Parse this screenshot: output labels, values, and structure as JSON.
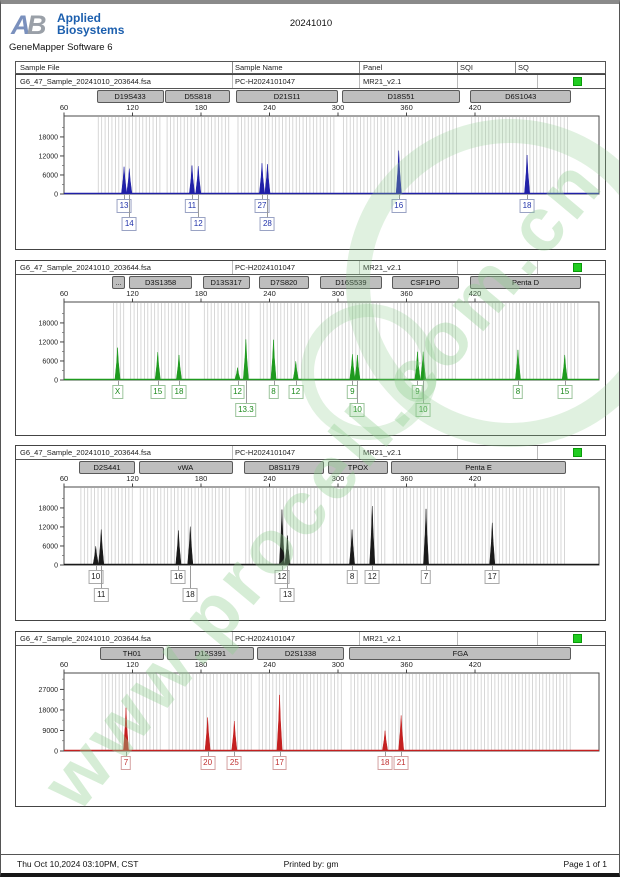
{
  "header": {
    "logo_a": "A",
    "logo_b": "B",
    "logo_line1": "Applied",
    "logo_line2": "Biosystems",
    "app_title": "GeneMapper Software 6",
    "doc_title": "20241010"
  },
  "table_header": {
    "columns": [
      "Sample File",
      "Sample Name",
      "Panel",
      "SQI",
      "SQ"
    ]
  },
  "sample_row": {
    "sample_file": "G6_47_Sample_20241010_203644.fsa",
    "sample_name": "PC-H2024101047",
    "panel": "MR21_v2.1",
    "sqi": "",
    "sq_status_color": "#21cc21"
  },
  "watermark": {
    "text": "www.procell.com.cn",
    "color": "#8fce8f"
  },
  "footer": {
    "datetime": "Thu Oct 10,2024 03:10PM, CST",
    "printed_by": "Printed by: gm",
    "page": "Page 1 of 1"
  },
  "axis": {
    "x_ticks": [
      60,
      120,
      180,
      240,
      300,
      360,
      420
    ],
    "x_label_unit": "bp"
  },
  "chart_data": [
    {
      "type": "line",
      "dye": "blue",
      "dye_color": "#2020a8",
      "label_color": "#2233aa",
      "label_border": "#9aa3c4",
      "y_ticks": [
        0,
        6000,
        12000,
        18000
      ],
      "y_max": 24600,
      "markers": [
        {
          "name": "D19S433",
          "range_bp": [
            88.5,
            147.2
          ]
        },
        {
          "name": "D5S818",
          "range_bp": [
            148.8,
            205.8
          ]
        },
        {
          "name": "D21S11",
          "range_bp": [
            210.9,
            299.8
          ]
        },
        {
          "name": "D18S51",
          "range_bp": [
            303.2,
            407.2
          ]
        },
        {
          "name": "D6S1043",
          "range_bp": [
            415.6,
            504.5
          ]
        }
      ],
      "peaks": [
        {
          "marker": "D19S433",
          "allele": "13",
          "size_bp": 112.6,
          "height_rfu": 8600,
          "label_row": 1
        },
        {
          "marker": "D19S433",
          "allele": "14",
          "size_bp": 117.2,
          "height_rfu": 8000,
          "label_row": 2
        },
        {
          "marker": "D5S818",
          "allele": "11",
          "size_bp": 172.1,
          "height_rfu": 9000,
          "label_row": 1
        },
        {
          "marker": "D5S818",
          "allele": "12",
          "size_bp": 177.6,
          "height_rfu": 8800,
          "label_row": 2
        },
        {
          "marker": "D21S11",
          "allele": "27",
          "size_bp": 233.4,
          "height_rfu": 9700,
          "label_row": 1
        },
        {
          "marker": "D21S11",
          "allele": "28",
          "size_bp": 238.2,
          "height_rfu": 9400,
          "label_row": 2
        },
        {
          "marker": "D18S51",
          "allele": "16",
          "size_bp": 353.2,
          "height_rfu": 13700,
          "label_row": 1
        },
        {
          "marker": "D6S1043",
          "allele": "18",
          "size_bp": 465.6,
          "height_rfu": 12300,
          "label_row": 1
        }
      ]
    },
    {
      "type": "line",
      "dye": "green",
      "dye_color": "#1e9a1e",
      "label_color": "#1c8a1c",
      "label_border": "#9cc49c",
      "y_ticks": [
        0,
        6000,
        12000,
        18000
      ],
      "y_max": 24600,
      "markers": [
        {
          "name": "...",
          "range_bp": [
            101.8,
            113.6
          ]
        },
        {
          "name": "D3S1358",
          "range_bp": [
            116.9,
            172.3
          ]
        },
        {
          "name": "D13S317",
          "range_bp": [
            181.4,
            222.7
          ]
        },
        {
          "name": "D7S820",
          "range_bp": [
            230.4,
            274.7
          ]
        },
        {
          "name": "D16S539",
          "range_bp": [
            284.1,
            338.5
          ]
        },
        {
          "name": "CSF1PO",
          "range_bp": [
            347.5,
            405.6
          ]
        },
        {
          "name": "Penta D",
          "range_bp": [
            415.6,
            512.9
          ]
        }
      ],
      "peaks": [
        {
          "marker": "AMEL",
          "allele": "X",
          "size_bp": 106.9,
          "height_rfu": 10200,
          "label_row": 1
        },
        {
          "marker": "D3S1358",
          "allele": "15",
          "size_bp": 142.1,
          "height_rfu": 8800,
          "label_row": 1
        },
        {
          "marker": "D3S1358",
          "allele": "18",
          "size_bp": 160.7,
          "height_rfu": 7900,
          "label_row": 1
        },
        {
          "marker": "D13S317",
          "allele": "12",
          "size_bp": 212.0,
          "height_rfu": 3900,
          "label_row": 1
        },
        {
          "marker": "D13S317",
          "allele": "13.3",
          "size_bp": 219.3,
          "height_rfu": 12800,
          "label_row": 2
        },
        {
          "marker": "D7S820",
          "allele": "8",
          "size_bp": 243.5,
          "height_rfu": 12700,
          "label_row": 1
        },
        {
          "marker": "D7S820",
          "allele": "12",
          "size_bp": 263.0,
          "height_rfu": 5900,
          "label_row": 1
        },
        {
          "marker": "D16S539",
          "allele": "9",
          "size_bp": 312.6,
          "height_rfu": 8100,
          "label_row": 1
        },
        {
          "marker": "D16S539",
          "allele": "10",
          "size_bp": 317.0,
          "height_rfu": 7900,
          "label_row": 2
        },
        {
          "marker": "CSF1PO",
          "allele": "9",
          "size_bp": 369.6,
          "height_rfu": 8900,
          "label_row": 1
        },
        {
          "marker": "CSF1PO",
          "allele": "10",
          "size_bp": 374.6,
          "height_rfu": 8900,
          "label_row": 2
        },
        {
          "marker": "Penta D",
          "allele": "8",
          "size_bp": 457.6,
          "height_rfu": 9500,
          "label_row": 1
        },
        {
          "marker": "Penta D",
          "allele": "15",
          "size_bp": 498.6,
          "height_rfu": 7900,
          "label_row": 1
        }
      ]
    },
    {
      "type": "line",
      "dye": "black",
      "dye_color": "#1a1a1a",
      "label_color": "#1a1a1a",
      "label_border": "#aaaaaa",
      "y_ticks": [
        0,
        6000,
        12000,
        18000
      ],
      "y_max": 24600,
      "markers": [
        {
          "name": "D2S441",
          "range_bp": [
            73.3,
            122.1
          ]
        },
        {
          "name": "vWA",
          "range_bp": [
            125.3,
            207.6
          ]
        },
        {
          "name": "D8S1179",
          "range_bp": [
            217.7,
            288.1
          ]
        },
        {
          "name": "TPOX",
          "range_bp": [
            291.5,
            343.5
          ]
        },
        {
          "name": "Penta E",
          "range_bp": [
            346.8,
            499.5
          ]
        }
      ],
      "peaks": [
        {
          "marker": "D2S441",
          "allele": "10",
          "size_bp": 87.8,
          "height_rfu": 5900,
          "label_row": 1
        },
        {
          "marker": "D2S441",
          "allele": "11",
          "size_bp": 92.6,
          "height_rfu": 11200,
          "label_row": 2
        },
        {
          "marker": "vWA",
          "allele": "16",
          "size_bp": 160.2,
          "height_rfu": 10900,
          "label_row": 1
        },
        {
          "marker": "vWA",
          "allele": "18",
          "size_bp": 170.6,
          "height_rfu": 12100,
          "label_row": 2
        },
        {
          "marker": "D8S1179",
          "allele": "12",
          "size_bp": 250.9,
          "height_rfu": 17500,
          "label_row": 1
        },
        {
          "marker": "D8S1179",
          "allele": "13",
          "size_bp": 255.7,
          "height_rfu": 9300,
          "label_row": 2
        },
        {
          "marker": "TPOX",
          "allele": "8",
          "size_bp": 312.3,
          "height_rfu": 11200,
          "label_row": 1
        },
        {
          "marker": "TPOX",
          "allele": "12",
          "size_bp": 330.0,
          "height_rfu": 18600,
          "label_row": 1
        },
        {
          "marker": "Penta E",
          "allele": "7",
          "size_bp": 377.1,
          "height_rfu": 17700,
          "label_row": 1
        },
        {
          "marker": "Penta E",
          "allele": "17",
          "size_bp": 435.1,
          "height_rfu": 13300,
          "label_row": 1
        }
      ]
    },
    {
      "type": "line",
      "dye": "red",
      "dye_color": "#c42020",
      "label_color": "#c03030",
      "label_border": "#d4a0a0",
      "y_ticks": [
        0,
        9000,
        18000,
        27000
      ],
      "y_max": 34200,
      "markers": [
        {
          "name": "TH01",
          "range_bp": [
            91.8,
            147.2
          ]
        },
        {
          "name": "D12S391",
          "range_bp": [
            150.5,
            226.0
          ]
        },
        {
          "name": "D2S1338",
          "range_bp": [
            229.4,
            304.9
          ]
        },
        {
          "name": "FGA",
          "range_bp": [
            309.9,
            504.5
          ]
        }
      ],
      "peaks": [
        {
          "marker": "TH01",
          "allele": "7",
          "size_bp": 114.3,
          "height_rfu": 19000,
          "label_row": 1
        },
        {
          "marker": "D12S391",
          "allele": "20",
          "size_bp": 185.8,
          "height_rfu": 14700,
          "label_row": 1
        },
        {
          "marker": "D12S391",
          "allele": "25",
          "size_bp": 209.2,
          "height_rfu": 13100,
          "label_row": 1
        },
        {
          "marker": "D2S1338",
          "allele": "17",
          "size_bp": 248.8,
          "height_rfu": 24600,
          "label_row": 1
        },
        {
          "marker": "FGA",
          "allele": "18",
          "size_bp": 341.2,
          "height_rfu": 8900,
          "label_row": 1
        },
        {
          "marker": "FGA",
          "allele": "21",
          "size_bp": 355.3,
          "height_rfu": 15600,
          "label_row": 1
        }
      ]
    }
  ]
}
